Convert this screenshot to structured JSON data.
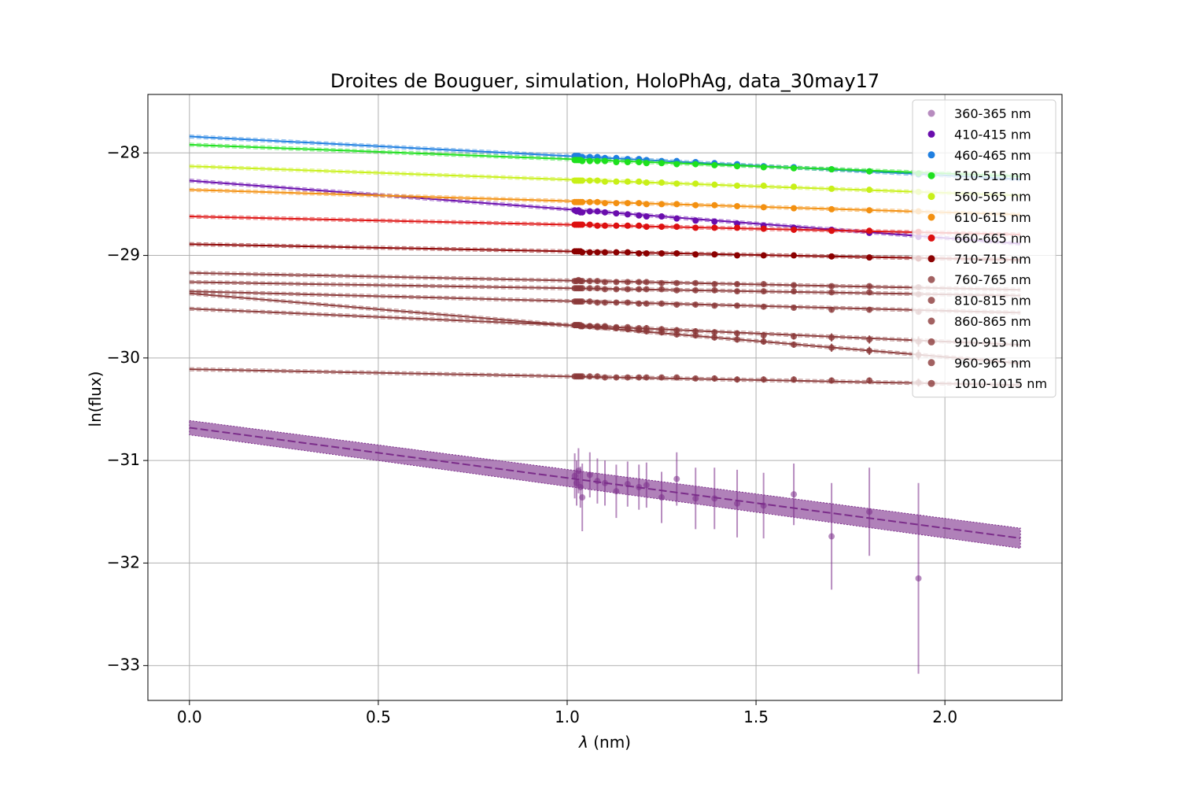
{
  "chart_data": {
    "type": "scatter",
    "title": "Droites de Bouguer, simulation, HoloPhAg, data_30may17",
    "xlabel_symbol": "λ",
    "xlabel_unit": " (nm)",
    "ylabel": "ln(flux)",
    "xlim": [
      -0.11,
      2.31
    ],
    "ylim": [
      -33.34,
      -27.43
    ],
    "xticks": [
      0.0,
      0.5,
      1.0,
      1.5,
      2.0
    ],
    "xtick_labels": [
      "0.0",
      "0.5",
      "1.0",
      "1.5",
      "2.0"
    ],
    "yticks": [
      -28,
      -29,
      -30,
      -31,
      -32,
      -33
    ],
    "ytick_labels": [
      "−28",
      "−29",
      "−30",
      "−31",
      "−32",
      "−33"
    ],
    "grid": true,
    "legend_position": "top-right",
    "fit_x_range": [
      0.0,
      2.2
    ],
    "x": [
      1.02,
      1.025,
      1.03,
      1.035,
      1.04,
      1.06,
      1.08,
      1.1,
      1.13,
      1.16,
      1.19,
      1.21,
      1.25,
      1.29,
      1.34,
      1.39,
      1.45,
      1.52,
      1.6,
      1.7,
      1.8,
      1.93
    ],
    "series": [
      {
        "name": "360-365 nm",
        "color": "#7b2d8a",
        "alpha": 0.55,
        "intercept": -30.68,
        "slope": -0.49,
        "band": 0.07,
        "y": [
          -31.15,
          -31.22,
          -31.1,
          -31.26,
          -31.36,
          -31.14,
          -31.2,
          -31.22,
          -31.3,
          -31.23,
          -31.26,
          -31.24,
          -31.36,
          -31.18,
          -31.37,
          -31.37,
          -31.42,
          -31.44,
          -31.33,
          -31.74,
          -31.5,
          -32.15
        ],
        "yerr": [
          0.22,
          0.22,
          0.22,
          0.2,
          0.33,
          0.22,
          0.22,
          0.22,
          0.26,
          0.22,
          0.22,
          0.22,
          0.25,
          0.26,
          0.3,
          0.3,
          0.33,
          0.32,
          0.3,
          0.52,
          0.43,
          0.93
        ]
      },
      {
        "name": "410-415 nm",
        "color": "#6a0dad",
        "alpha": 1,
        "intercept": -28.27,
        "slope": -0.28,
        "y": [
          -28.56,
          -28.57,
          -28.56,
          -28.58,
          -28.58,
          -28.57,
          -28.57,
          -28.58,
          -28.59,
          -28.6,
          -28.61,
          -28.62,
          -28.62,
          -28.64,
          -28.66,
          -28.67,
          -28.69,
          -28.71,
          -28.73,
          -28.75,
          -28.78,
          -28.82
        ],
        "yerr": [
          0.02,
          0.02,
          0.02,
          0.02,
          0.02,
          0.02,
          0.02,
          0.02,
          0.02,
          0.02,
          0.02,
          0.02,
          0.02,
          0.02,
          0.02,
          0.02,
          0.02,
          0.02,
          0.02,
          0.02,
          0.02,
          0.02
        ]
      },
      {
        "name": "460-465 nm",
        "color": "#1f7fe0",
        "alpha": 1,
        "intercept": -27.84,
        "slope": -0.19,
        "y": [
          -28.03,
          -28.03,
          -28.03,
          -28.04,
          -28.04,
          -28.04,
          -28.04,
          -28.05,
          -28.05,
          -28.06,
          -28.06,
          -28.07,
          -28.08,
          -28.08,
          -28.09,
          -28.1,
          -28.11,
          -28.13,
          -28.14,
          -28.16,
          -28.18,
          -28.21
        ],
        "yerr": [
          0.01,
          0.01,
          0.01,
          0.01,
          0.01,
          0.01,
          0.01,
          0.01,
          0.01,
          0.01,
          0.01,
          0.01,
          0.01,
          0.01,
          0.01,
          0.01,
          0.01,
          0.01,
          0.01,
          0.01,
          0.01,
          0.01
        ]
      },
      {
        "name": "510-515 nm",
        "color": "#1ee01e",
        "alpha": 1,
        "intercept": -27.92,
        "slope": -0.14,
        "y": [
          -28.07,
          -28.07,
          -28.07,
          -28.07,
          -28.08,
          -28.08,
          -28.08,
          -28.08,
          -28.09,
          -28.09,
          -28.09,
          -28.1,
          -28.1,
          -28.11,
          -28.11,
          -28.12,
          -28.13,
          -28.14,
          -28.15,
          -28.16,
          -28.18,
          -28.2
        ],
        "yerr": [
          0.01,
          0.01,
          0.01,
          0.01,
          0.01,
          0.01,
          0.01,
          0.01,
          0.01,
          0.01,
          0.01,
          0.01,
          0.01,
          0.01,
          0.01,
          0.01,
          0.01,
          0.01,
          0.01,
          0.01,
          0.01,
          0.01
        ]
      },
      {
        "name": "560-565 nm",
        "color": "#c8f018",
        "alpha": 1,
        "intercept": -28.13,
        "slope": -0.13,
        "y": [
          -28.27,
          -28.27,
          -28.27,
          -28.27,
          -28.27,
          -28.27,
          -28.27,
          -28.28,
          -28.28,
          -28.28,
          -28.28,
          -28.29,
          -28.29,
          -28.3,
          -28.3,
          -28.31,
          -28.32,
          -28.32,
          -28.33,
          -28.35,
          -28.36,
          -28.38
        ],
        "yerr": [
          0.01,
          0.01,
          0.01,
          0.01,
          0.01,
          0.01,
          0.01,
          0.01,
          0.01,
          0.01,
          0.01,
          0.01,
          0.01,
          0.01,
          0.01,
          0.01,
          0.01,
          0.01,
          0.01,
          0.01,
          0.01,
          0.01
        ]
      },
      {
        "name": "610-615 nm",
        "color": "#f39010",
        "alpha": 1,
        "intercept": -28.36,
        "slope": -0.11,
        "y": [
          -28.48,
          -28.48,
          -28.48,
          -28.48,
          -28.48,
          -28.48,
          -28.48,
          -28.49,
          -28.49,
          -28.49,
          -28.49,
          -28.5,
          -28.5,
          -28.5,
          -28.51,
          -28.51,
          -28.52,
          -28.53,
          -28.54,
          -28.55,
          -28.56,
          -28.57
        ],
        "yerr": [
          0.01,
          0.01,
          0.01,
          0.01,
          0.01,
          0.01,
          0.01,
          0.01,
          0.01,
          0.01,
          0.01,
          0.01,
          0.01,
          0.01,
          0.01,
          0.01,
          0.01,
          0.01,
          0.01,
          0.01,
          0.01,
          0.01
        ]
      },
      {
        "name": "660-665 nm",
        "color": "#dd1010",
        "alpha": 1,
        "intercept": -28.62,
        "slope": -0.08,
        "y": [
          -28.7,
          -28.7,
          -28.7,
          -28.7,
          -28.7,
          -28.7,
          -28.71,
          -28.71,
          -28.71,
          -28.71,
          -28.71,
          -28.72,
          -28.72,
          -28.72,
          -28.73,
          -28.73,
          -28.73,
          -28.74,
          -28.75,
          -28.76,
          -28.76,
          -28.77
        ],
        "yerr": [
          0.01,
          0.01,
          0.01,
          0.01,
          0.01,
          0.01,
          0.01,
          0.01,
          0.01,
          0.01,
          0.01,
          0.01,
          0.01,
          0.01,
          0.01,
          0.01,
          0.01,
          0.01,
          0.01,
          0.01,
          0.01,
          0.01
        ]
      },
      {
        "name": "710-715 nm",
        "color": "#8b0000",
        "alpha": 1,
        "intercept": -28.89,
        "slope": -0.07,
        "y": [
          -28.96,
          -28.96,
          -28.96,
          -28.96,
          -28.97,
          -28.97,
          -28.97,
          -28.97,
          -28.97,
          -28.97,
          -28.98,
          -28.98,
          -28.98,
          -28.98,
          -28.99,
          -28.99,
          -29.0,
          -29.0,
          -29.0,
          -29.01,
          -29.02,
          -29.03
        ],
        "yerr": [
          0.01,
          0.01,
          0.01,
          0.01,
          0.01,
          0.01,
          0.01,
          0.01,
          0.01,
          0.01,
          0.01,
          0.01,
          0.01,
          0.01,
          0.01,
          0.01,
          0.01,
          0.01,
          0.01,
          0.01,
          0.01,
          0.01
        ]
      },
      {
        "name": "760-765 nm",
        "color": "#8b3a3a",
        "alpha": 0.8,
        "intercept": -29.17,
        "slope": -0.075,
        "y": [
          -29.25,
          -29.25,
          -29.24,
          -29.25,
          -29.25,
          -29.25,
          -29.25,
          -29.26,
          -29.26,
          -29.26,
          -29.26,
          -29.26,
          -29.27,
          -29.27,
          -29.27,
          -29.28,
          -29.28,
          -29.28,
          -29.29,
          -29.3,
          -29.3,
          -29.31
        ],
        "yerr": [
          0.02,
          0.02,
          0.02,
          0.02,
          0.02,
          0.02,
          0.02,
          0.02,
          0.02,
          0.02,
          0.02,
          0.02,
          0.02,
          0.02,
          0.02,
          0.02,
          0.02,
          0.02,
          0.02,
          0.02,
          0.02,
          0.02
        ]
      },
      {
        "name": "810-815 nm",
        "color": "#8b3a3a",
        "alpha": 0.8,
        "intercept": -29.26,
        "slope": -0.06,
        "y": [
          -29.32,
          -29.32,
          -29.32,
          -29.32,
          -29.32,
          -29.32,
          -29.32,
          -29.33,
          -29.33,
          -29.33,
          -29.33,
          -29.33,
          -29.33,
          -29.34,
          -29.34,
          -29.34,
          -29.35,
          -29.35,
          -29.35,
          -29.36,
          -29.36,
          -29.38
        ],
        "yerr": [
          0.02,
          0.02,
          0.02,
          0.02,
          0.02,
          0.02,
          0.02,
          0.02,
          0.02,
          0.02,
          0.02,
          0.02,
          0.02,
          0.02,
          0.02,
          0.02,
          0.02,
          0.02,
          0.02,
          0.02,
          0.02,
          0.02
        ]
      },
      {
        "name": "860-865 nm",
        "color": "#8b3a3a",
        "alpha": 0.8,
        "intercept": -29.35,
        "slope": -0.095,
        "y": [
          -29.45,
          -29.45,
          -29.45,
          -29.45,
          -29.45,
          -29.45,
          -29.46,
          -29.46,
          -29.46,
          -29.46,
          -29.47,
          -29.47,
          -29.47,
          -29.48,
          -29.48,
          -29.49,
          -29.49,
          -29.5,
          -29.51,
          -29.53,
          -29.53,
          -29.55
        ],
        "yerr": [
          0.02,
          0.02,
          0.02,
          0.02,
          0.02,
          0.02,
          0.02,
          0.02,
          0.02,
          0.02,
          0.02,
          0.02,
          0.02,
          0.02,
          0.02,
          0.02,
          0.02,
          0.02,
          0.02,
          0.02,
          0.02,
          0.02
        ]
      },
      {
        "name": "910-915 nm",
        "color": "#8b3a3a",
        "alpha": 0.8,
        "intercept": -29.37,
        "slope": -0.31,
        "y": [
          -29.68,
          -29.68,
          -29.68,
          -29.69,
          -29.69,
          -29.69,
          -29.7,
          -29.7,
          -29.71,
          -29.72,
          -29.73,
          -29.74,
          -29.75,
          -29.77,
          -29.78,
          -29.8,
          -29.82,
          -29.84,
          -29.87,
          -29.9,
          -29.93,
          -29.97
        ],
        "yerr": [
          0.02,
          0.02,
          0.02,
          0.02,
          0.02,
          0.02,
          0.02,
          0.02,
          0.02,
          0.02,
          0.02,
          0.03,
          0.03,
          0.03,
          0.03,
          0.03,
          0.03,
          0.03,
          0.03,
          0.04,
          0.04,
          0.05
        ]
      },
      {
        "name": "960-965 nm",
        "color": "#8b3a3a",
        "alpha": 0.8,
        "intercept": -29.52,
        "slope": -0.16,
        "y": [
          -29.68,
          -29.68,
          -29.68,
          -29.68,
          -29.69,
          -29.69,
          -29.69,
          -29.69,
          -29.7,
          -29.7,
          -29.71,
          -29.71,
          -29.72,
          -29.73,
          -29.74,
          -29.75,
          -29.76,
          -29.78,
          -29.79,
          -29.8,
          -29.82,
          -29.84
        ],
        "yerr": [
          0.02,
          0.02,
          0.02,
          0.02,
          0.02,
          0.02,
          0.02,
          0.02,
          0.02,
          0.02,
          0.02,
          0.03,
          0.03,
          0.03,
          0.03,
          0.03,
          0.03,
          0.03,
          0.03,
          0.04,
          0.04,
          0.05
        ]
      },
      {
        "name": "1010-1015 nm",
        "color": "#8b3a3a",
        "alpha": 0.8,
        "intercept": -30.11,
        "slope": -0.07,
        "y": [
          -30.18,
          -30.18,
          -30.18,
          -30.18,
          -30.18,
          -30.18,
          -30.18,
          -30.19,
          -30.19,
          -30.19,
          -30.19,
          -30.19,
          -30.19,
          -30.19,
          -30.2,
          -30.2,
          -30.21,
          -30.21,
          -30.21,
          -30.22,
          -30.22,
          -30.24
        ],
        "yerr": [
          0.02,
          0.02,
          0.02,
          0.02,
          0.02,
          0.02,
          0.02,
          0.02,
          0.02,
          0.02,
          0.02,
          0.02,
          0.02,
          0.02,
          0.02,
          0.03,
          0.03,
          0.03,
          0.03,
          0.03,
          0.03,
          0.04
        ]
      }
    ]
  }
}
